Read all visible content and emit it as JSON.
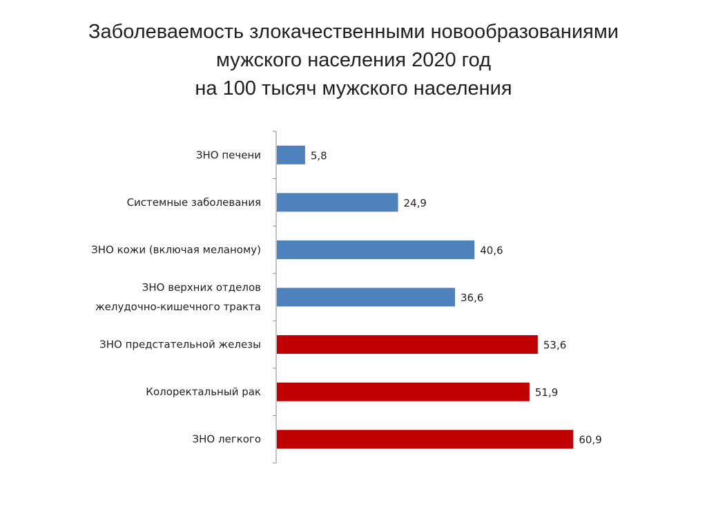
{
  "chart_data": {
    "type": "bar",
    "orientation": "horizontal",
    "title_lines": [
      "Заболеваемость злокачественными новообразованиями",
      "мужского населения 2020 год",
      "на 100 тысяч мужского населения"
    ],
    "categories": [
      [
        "ЗНО печени"
      ],
      [
        "Системные заболевания"
      ],
      [
        "ЗНО кожи (включая меланому)"
      ],
      [
        "ЗНО верхних отделов",
        "желудочно-кишечного тракта"
      ],
      [
        "ЗНО предстательной железы"
      ],
      [
        "Колоректальный рак"
      ],
      [
        "ЗНО легкого"
      ]
    ],
    "values": [
      5.8,
      24.9,
      40.6,
      36.6,
      53.6,
      51.9,
      60.9
    ],
    "data_labels": [
      "5,8",
      "24,9",
      "40,6",
      "36,6",
      "53,6",
      "51,9",
      "60,9"
    ],
    "bar_colors": [
      "#4f81bd",
      "#4f81bd",
      "#4f81bd",
      "#4f81bd",
      "#c00000",
      "#c00000",
      "#c00000"
    ],
    "xlim": [
      0,
      61
    ],
    "grid": false,
    "legend": "none"
  }
}
